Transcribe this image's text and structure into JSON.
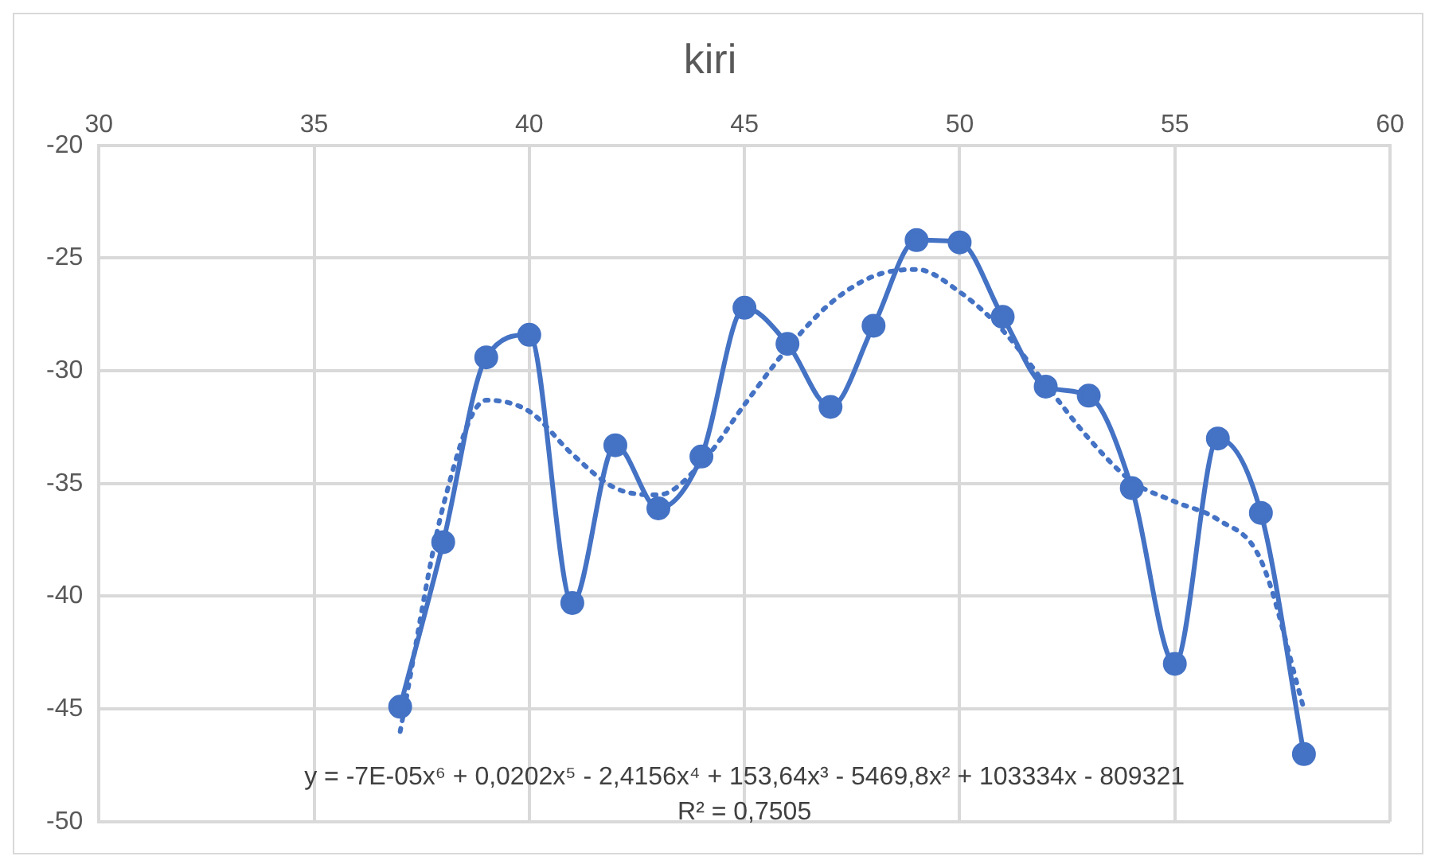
{
  "chart_data": {
    "type": "line",
    "title": "kiri",
    "x": [
      37,
      38,
      39,
      40,
      41,
      42,
      43,
      44,
      45,
      46,
      47,
      48,
      49,
      50,
      51,
      52,
      53,
      54,
      55,
      56,
      57,
      58
    ],
    "series": [
      {
        "color": "#4472c4",
        "marker": "circle",
        "line_style": "solid",
        "values": [
          -44.9,
          -37.6,
          -29.4,
          -28.4,
          -40.3,
          -33.3,
          -36.1,
          -33.8,
          -27.2,
          -28.8,
          -31.6,
          -28.0,
          -24.2,
          -24.3,
          -27.6,
          -30.7,
          -31.1,
          -35.2,
          -43.0,
          -33.0,
          -36.3,
          -47.0
        ]
      },
      {
        "type": "line",
        "color": "#4472c4",
        "marker": "none",
        "line_style": "dotted",
        "x": [
          37,
          38,
          39,
          40,
          41,
          42,
          43,
          44,
          45,
          46,
          47,
          48,
          49,
          50,
          51,
          52,
          53,
          54,
          55,
          56,
          57,
          58
        ],
        "values": [
          -46.0,
          -36.0,
          -31.3,
          -31.8,
          -33.7,
          -35.2,
          -35.5,
          -34.1,
          -31.5,
          -29.0,
          -27.0,
          -25.8,
          -25.5,
          -26.5,
          -28.2,
          -30.6,
          -33.0,
          -34.9,
          -35.8,
          -36.6,
          -38.4,
          -45.0
        ]
      }
    ],
    "xlim": [
      30,
      60
    ],
    "xticks": [
      30,
      35,
      40,
      45,
      50,
      55,
      60
    ],
    "ylim": [
      -50,
      -20
    ],
    "yticks": [
      -50,
      -45,
      -40,
      -35,
      -30,
      -25,
      -20
    ],
    "grid": true,
    "legend": false,
    "annotations": [
      "y = -7E-05x⁶ + 0,0202x⁵ - 2,4156x⁴ + 153,64x³ - 5469,8x² + 103334x - 809321",
      "R² = 0,7505"
    ]
  }
}
